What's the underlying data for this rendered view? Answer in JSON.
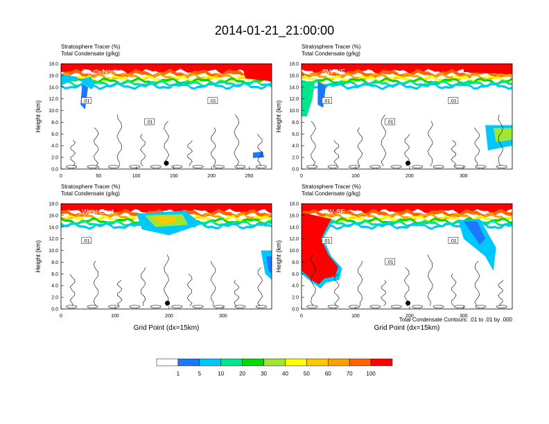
{
  "title": "2014-01-21_21:00:00",
  "footnote": "Total Condensate Contours: .01 to .01 by .000",
  "colors": {
    "bins": [
      "#ffffff",
      "#1e78ff",
      "#00c8ff",
      "#00e68c",
      "#00dc00",
      "#a0e632",
      "#ffff00",
      "#ffc800",
      "#ffa000",
      "#ff6400",
      "#ff0000"
    ],
    "contour": "#000000"
  },
  "colorbar": {
    "labels": [
      "1",
      "5",
      "10",
      "20",
      "30",
      "40",
      "50",
      "60",
      "70",
      "100"
    ]
  },
  "chart_data": [
    {
      "type": "heatmap",
      "name": "South-North",
      "subtitle_left": "Stratosphere Tracer   (%)",
      "subtitle_left2": "Total Condensate   (g/kg)",
      "ylabel": "Height (km)",
      "xlabel": "",
      "xlim": [
        0,
        280
      ],
      "ylim": [
        0,
        18
      ],
      "xticks": [
        "0",
        "50",
        "100",
        "150",
        "200",
        "250"
      ],
      "xtick_values": [
        0,
        50,
        100,
        150,
        200,
        250
      ],
      "yticks": [
        "0.0",
        "2.0",
        "4.0",
        "6.0",
        "8.0",
        "10.0",
        "12.0",
        "14.0",
        "16.0",
        "18.0"
      ],
      "contour_labels": [
        ".01",
        ".01",
        ".01"
      ],
      "marker_x": 140,
      "marker_y": 1.0
    },
    {
      "type": "heatmap",
      "name": "SW-NE",
      "subtitle_left": "Stratosphere Tracer   (%)",
      "subtitle_left2": "Total Condensate   (g/kg)",
      "ylabel": "Height (km)",
      "xlabel": "",
      "xlim": [
        0,
        390
      ],
      "ylim": [
        0,
        18
      ],
      "xticks": [
        "0",
        "100",
        "200",
        "300"
      ],
      "xtick_values": [
        0,
        100,
        200,
        300
      ],
      "yticks": [
        "0.0",
        "2.0",
        "4.0",
        "6.0",
        "8.0",
        "10.0",
        "12.0",
        "14.0",
        "16.0",
        "18.0"
      ],
      "contour_labels": [
        ".01",
        ".01",
        ".01"
      ],
      "marker_x": 197,
      "marker_y": 1.0
    },
    {
      "type": "heatmap",
      "name": "West-East",
      "subtitle_left": "Stratosphere Tracer   (%)",
      "subtitle_left2": "Total Condensate   (g/kg)",
      "ylabel": "Height (km)",
      "xlabel": "Grid Point (dx=15km)",
      "xlim": [
        0,
        390
      ],
      "ylim": [
        0,
        18
      ],
      "xticks": [
        "0",
        "100",
        "200",
        "300"
      ],
      "xtick_values": [
        0,
        100,
        200,
        300
      ],
      "yticks": [
        "0.0",
        "2.0",
        "4.0",
        "6.0",
        "8.0",
        "10.0",
        "12.0",
        "14.0",
        "16.0",
        "18.0"
      ],
      "contour_labels": [
        ".01"
      ],
      "marker_x": 197,
      "marker_y": 1.0
    },
    {
      "type": "heatmap",
      "name": "NW-SE",
      "subtitle_left": "Stratosphere Tracer   (%)",
      "subtitle_left2": "Total Condensate   (g/kg)",
      "ylabel": "Height (km)",
      "xlabel": "Grid Point (dx=15km)",
      "xlim": [
        0,
        390
      ],
      "ylim": [
        0,
        18
      ],
      "xticks": [
        "0",
        "100",
        "200",
        "300"
      ],
      "xtick_values": [
        0,
        100,
        200,
        300
      ],
      "yticks": [
        "0.0",
        "2.0",
        "4.0",
        "6.0",
        "8.0",
        "10.0",
        "12.0",
        "14.0",
        "16.0",
        "18.0"
      ],
      "contour_labels": [
        ".01",
        ".01",
        ".01"
      ],
      "marker_x": 197,
      "marker_y": 1.0
    }
  ]
}
